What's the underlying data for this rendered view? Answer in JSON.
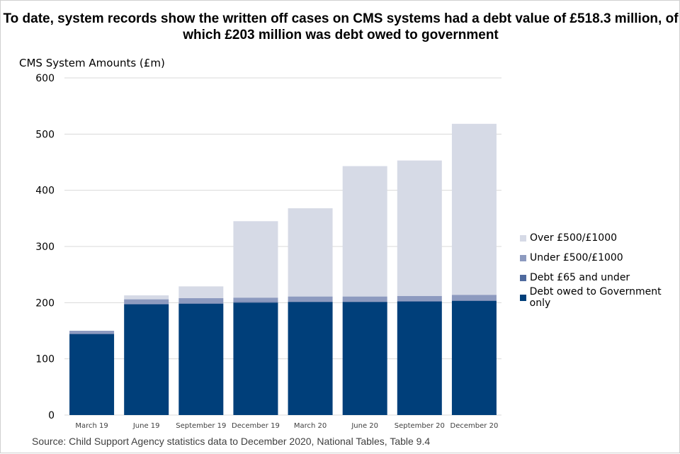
{
  "chart_data": {
    "type": "bar",
    "stacked": true,
    "title": "To date, system records show the written off cases on CMS systems had a debt value of £518.3 million, of which £203 million was debt owed to government",
    "ylabel": "CMS System Amounts (£m)",
    "xlabel": "",
    "ylim": [
      0,
      600
    ],
    "yticks": [
      0,
      100,
      200,
      300,
      400,
      500,
      600
    ],
    "grid": true,
    "legend_position": "right",
    "categories": [
      "March 19",
      "June 19",
      "September 19",
      "December 19",
      "March 20",
      "June 20",
      "September 20",
      "December 20"
    ],
    "series": [
      {
        "name": "Debt owed to Government only",
        "color": "#003f7a",
        "values": [
          144,
          197,
          198,
          200,
          201,
          201,
          202,
          203
        ]
      },
      {
        "name": "Debt £65 and under",
        "color": "#4f6a9e",
        "values": [
          1,
          1,
          1,
          1,
          1,
          1,
          1,
          1
        ]
      },
      {
        "name": "Under £500/£1000",
        "color": "#8d9abf",
        "values": [
          5,
          8,
          9,
          8,
          9,
          9,
          9,
          10
        ]
      },
      {
        "name": "Over £500/£1000",
        "color": "#d6dae6",
        "values": [
          0,
          7,
          21,
          136,
          157,
          232,
          241,
          304.3
        ]
      }
    ]
  },
  "source": "Source: Child Support Agency statistics data to December 2020, National Tables, Table 9.4"
}
